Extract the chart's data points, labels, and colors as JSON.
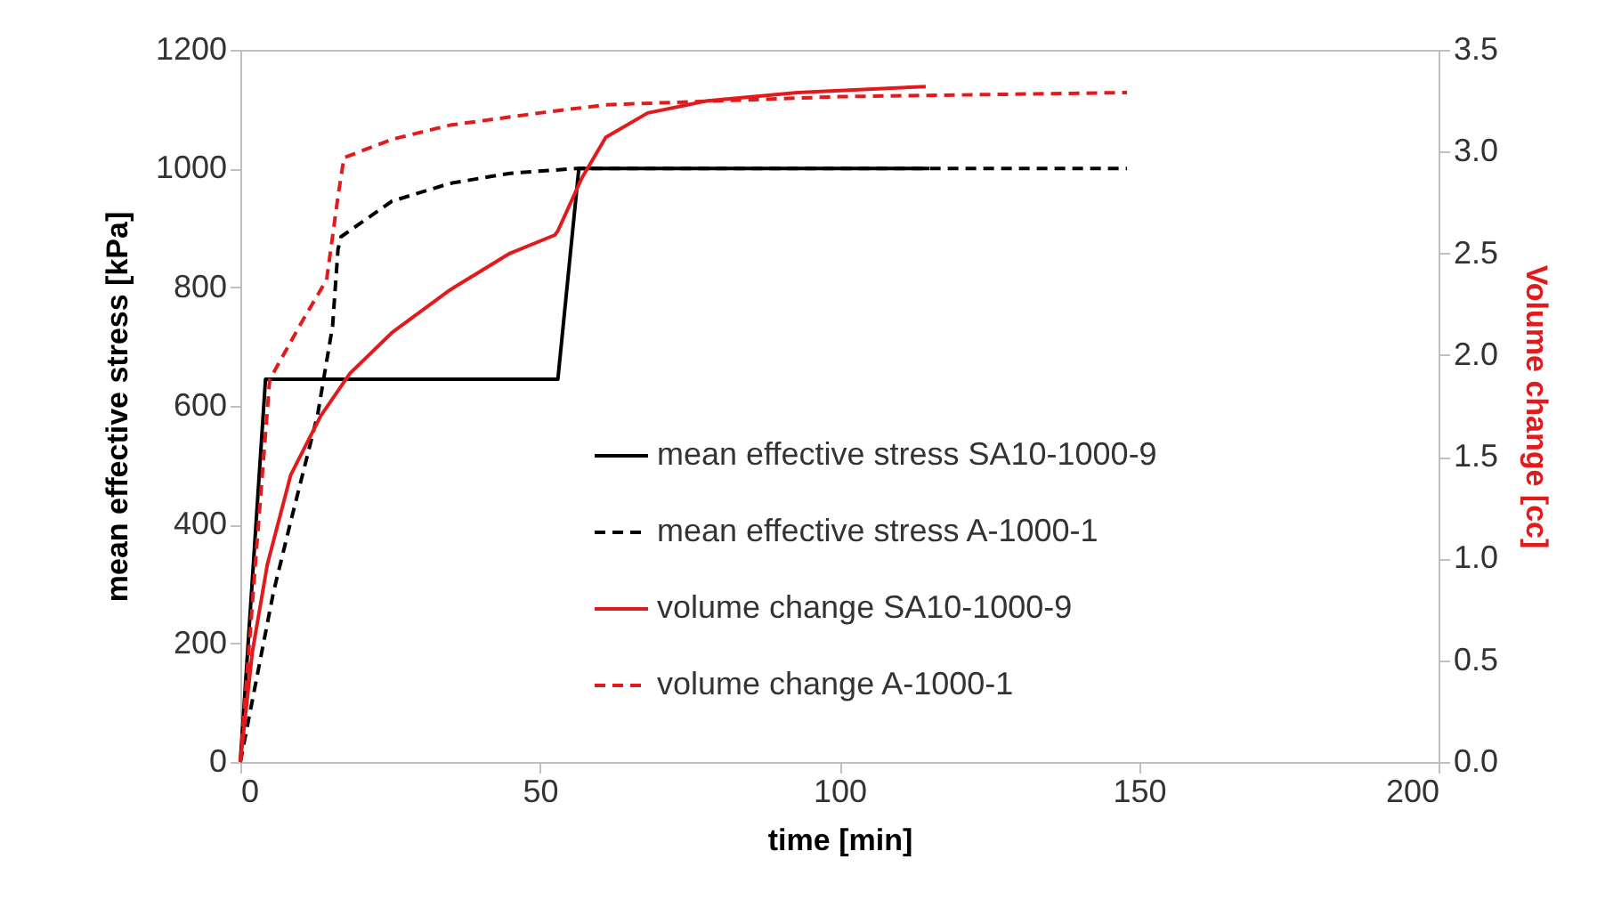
{
  "chart_data": {
    "type": "line",
    "xlabel": "time [min]",
    "ylabel": "mean effective stress [kPa]",
    "y2label": "Volume change [cc]",
    "xlim": [
      0,
      200
    ],
    "xticks": [
      0,
      50,
      100,
      150,
      200
    ],
    "ylim": [
      0,
      1200
    ],
    "yticks": [
      0,
      200,
      400,
      600,
      800,
      1000,
      1200
    ],
    "y2lim": [
      0,
      3.5
    ],
    "y2ticks": [
      {
        "value": 0,
        "label": "0.0"
      },
      {
        "value": 0.5,
        "label": "0.5"
      },
      {
        "value": 1,
        "label": "1.0"
      },
      {
        "value": 1.5,
        "label": "1.5"
      },
      {
        "value": 2,
        "label": "2.0"
      },
      {
        "value": 2.5,
        "label": "2.5"
      },
      {
        "value": 3,
        "label": "3.0"
      },
      {
        "value": 3.5,
        "label": "3.5"
      }
    ],
    "legend": "right",
    "grid": false,
    "series": [
      {
        "name": "mean effective stress SA10-1000-9",
        "color": "#000000",
        "line_style": "solid",
        "x": [
          0,
          4.2,
          53,
          56.5,
          115
        ],
        "values": [
          0,
          645,
          645,
          1000,
          1000
        ]
      },
      {
        "name": "mean effective stress A-1000-1",
        "color": "#000000",
        "line_style": "dashed",
        "x": [
          0,
          5.5,
          8.4,
          12.9,
          15.4,
          16.3,
          16.8,
          25.3,
          35,
          45,
          56,
          148
        ],
        "values": [
          0,
          285,
          405,
          585,
          735,
          864,
          885,
          945,
          975,
          992,
          1000,
          1000
        ]
      },
      {
        "name": "volume change SA10-1000-9",
        "color": "#e31a1c",
        "line_style": "solid",
        "axis": "y2",
        "x": [
          0,
          2,
          4.5,
          8.4,
          13.4,
          18.3,
          25.3,
          35,
          45,
          52.5,
          53,
          57,
          61,
          68,
          78,
          93,
          114.4
        ],
        "values": [
          0,
          0.54,
          0.97,
          1.41,
          1.7,
          1.91,
          2.11,
          2.32,
          2.5,
          2.59,
          2.61,
          2.87,
          3.07,
          3.19,
          3.25,
          3.29,
          3.32
        ]
      },
      {
        "name": "volume change A-1000-1",
        "color": "#e31a1c",
        "line_style": "dashed",
        "axis": "y2",
        "x": [
          0,
          2.5,
          4.9,
          10.4,
          14.4,
          16.3,
          17.3,
          25.3,
          35,
          50,
          61,
          100,
          148
        ],
        "values": [
          0,
          0.97,
          1.88,
          2.17,
          2.37,
          2.78,
          2.97,
          3.06,
          3.13,
          3.19,
          3.23,
          3.27,
          3.29
        ]
      }
    ]
  }
}
